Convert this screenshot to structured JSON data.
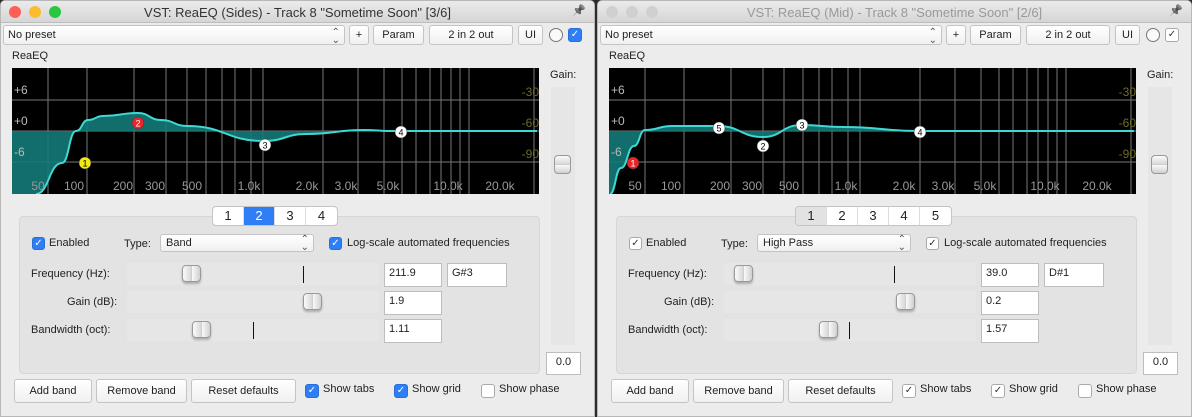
{
  "windows": [
    {
      "title": "VST: ReaEQ (Sides) - Track 8 \"Sometime Soon\" [3/6]",
      "active": true,
      "toolbar": {
        "preset": "No preset",
        "plus_label": "+",
        "param_label": "Param",
        "io_label": "2 in 2 out",
        "ui_label": "UI",
        "bypass_checked": true
      },
      "plugin_name": "ReaEQ",
      "graph": {
        "db_labels": [
          "+6",
          "+0",
          "-6"
        ],
        "right_labels": [
          "-30",
          "-60",
          "-90"
        ],
        "freq_labels": [
          "50",
          "100",
          "200",
          "300",
          "500",
          "1.0k",
          "2.0k",
          "3.0k",
          "5.0k",
          "10.0k",
          "20.0k"
        ],
        "bands": [
          {
            "label": "1",
            "color": "#f2ea12"
          },
          {
            "label": "2",
            "color": "#e8262a"
          },
          {
            "label": "3",
            "color": "#ffffff"
          },
          {
            "label": "4",
            "color": "#ffffff"
          }
        ],
        "curve_color": "#3fd8d2",
        "fill_color": "#137a78"
      },
      "gain": {
        "label": "Gain:",
        "value": "0.0"
      },
      "tabs": [
        "1",
        "2",
        "3",
        "4"
      ],
      "selected_tab": 1,
      "band": {
        "enabled_label": "Enabled",
        "enabled": true,
        "type_label": "Type:",
        "type": "Band",
        "logscale_label": "Log-scale automated frequencies",
        "logscale": true,
        "frequency_label": "Frequency (Hz):",
        "frequency": "211.9",
        "note": "G#3",
        "gain_label": "Gain (dB):",
        "gain": "1.9",
        "bandwidth_label": "Bandwidth (oct):",
        "bandwidth": "1.11"
      },
      "footer": {
        "add_band": "Add band",
        "remove_band": "Remove band",
        "reset_defaults": "Reset defaults",
        "show_tabs": "Show tabs",
        "show_tabs_checked": true,
        "show_grid": "Show grid",
        "show_grid_checked": true,
        "show_phase": "Show phase",
        "show_phase_checked": false
      }
    },
    {
      "title": "VST: ReaEQ (Mid) - Track 8 \"Sometime Soon\" [2/6]",
      "active": false,
      "toolbar": {
        "preset": "No preset",
        "plus_label": "+",
        "param_label": "Param",
        "io_label": "2 in 2 out",
        "ui_label": "UI",
        "bypass_checked": true
      },
      "plugin_name": "ReaEQ",
      "graph": {
        "db_labels": [
          "+6",
          "+0",
          "-6"
        ],
        "right_labels": [
          "-30",
          "-60",
          "-90"
        ],
        "freq_labels": [
          "50",
          "100",
          "200",
          "300",
          "500",
          "1.0k",
          "2.0k",
          "3.0k",
          "5.0k",
          "10.0k",
          "20.0k"
        ],
        "bands": [
          {
            "label": "1",
            "color": "#e8262a"
          },
          {
            "label": "2",
            "color": "#ffffff"
          },
          {
            "label": "3",
            "color": "#ffffff"
          },
          {
            "label": "4",
            "color": "#ffffff"
          },
          {
            "label": "5",
            "color": "#ffffff"
          }
        ],
        "curve_color": "#3fd8d2",
        "fill_color": "#137a78"
      },
      "gain": {
        "label": "Gain:",
        "value": "0.0"
      },
      "tabs": [
        "1",
        "2",
        "3",
        "4",
        "5"
      ],
      "selected_tab": 0,
      "band": {
        "enabled_label": "Enabled",
        "enabled": true,
        "type_label": "Type:",
        "type": "High Pass",
        "logscale_label": "Log-scale automated frequencies",
        "logscale": true,
        "frequency_label": "Frequency (Hz):",
        "frequency": "39.0",
        "note": "D#1",
        "gain_label": "Gain (dB):",
        "gain": "0.2",
        "bandwidth_label": "Bandwidth (oct):",
        "bandwidth": "1.57"
      },
      "footer": {
        "add_band": "Add band",
        "remove_band": "Remove band",
        "reset_defaults": "Reset defaults",
        "show_tabs": "Show tabs",
        "show_tabs_checked": true,
        "show_grid": "Show grid",
        "show_grid_checked": true,
        "show_phase": "Show phase",
        "show_phase_checked": false
      }
    }
  ]
}
